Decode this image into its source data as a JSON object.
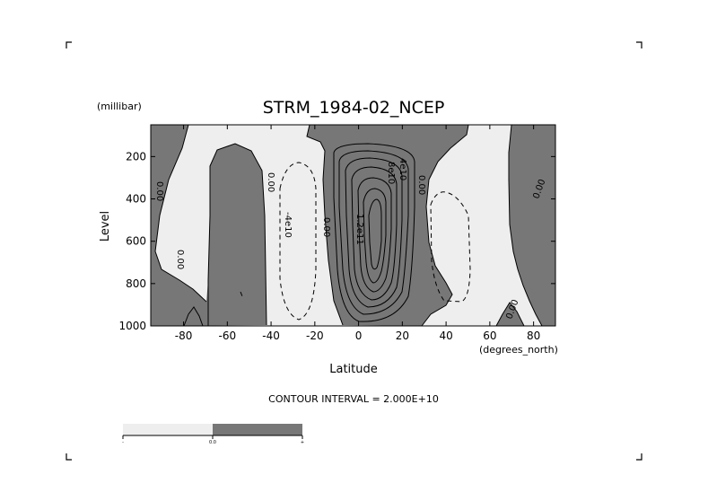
{
  "chart_data": {
    "type": "contour",
    "title": "STRM_1984-02_NCEP",
    "xlabel": "Latitude",
    "ylabel": "Level",
    "x_units": "(degrees_north)",
    "y_units": "(millibar)",
    "xlim": [
      -95,
      90
    ],
    "ylim": [
      1000,
      50
    ],
    "y_inverted": true,
    "xticks": [
      -80,
      -60,
      -40,
      -20,
      0,
      20,
      40,
      60,
      80
    ],
    "yticks": [
      200,
      400,
      600,
      800,
      1000
    ],
    "contour_interval_text": "CONTOUR INTERVAL = 2.000E+10",
    "contour_labels": [
      "0.00",
      "0.00",
      "0.00",
      "0.00",
      "0.00",
      "0.00",
      "0.00",
      "-4e10",
      "4e10",
      "8e10",
      "1.2e11"
    ],
    "colorbar": {
      "left": "-",
      "mid": "0.0",
      "right": "+"
    },
    "colors": {
      "positive": "#777777",
      "negative": "#eeeeee",
      "line": "#000000"
    }
  }
}
